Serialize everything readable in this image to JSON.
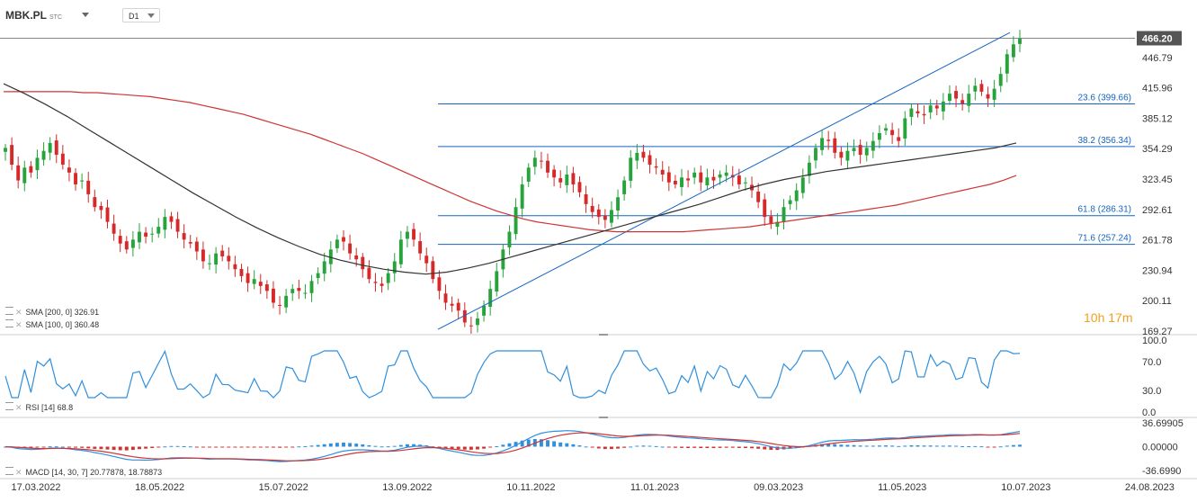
{
  "header": {
    "symbol": "MBK.PL",
    "symbol_suffix": "STC",
    "timeframe": "D1"
  },
  "indicators": {
    "sma200_label": "SMA [200, 0] 326.91",
    "sma100_label": "SMA [100, 0] 360.48",
    "rsi_label": "RSI [14] 68.8",
    "macd_label": "MACD [14, 30, 7] 20.77878, 18.78873"
  },
  "timer": {
    "hours": "10",
    "h_unit": "h",
    "minutes": "17",
    "m_unit": "m"
  },
  "colors": {
    "up": "#26a33a",
    "down": "#d62a2a",
    "sma200": "#d03333",
    "sma100": "#333333",
    "fib": "#1565c0",
    "rsi": "#2f8fdd",
    "macd_line": "#2f8fdd",
    "signal_line": "#d03333",
    "price_tag": "#555555"
  },
  "chart_data": {
    "type": "candlestick",
    "last_price": "466.20",
    "price_ticks": [
      "446.79",
      "415.96",
      "385.12",
      "354.29",
      "323.45",
      "292.61",
      "261.78",
      "230.94",
      "200.11",
      "169.27"
    ],
    "date_ticks": [
      "17.03.2022",
      "18.05.2022",
      "15.07.2022",
      "13.09.2022",
      "10.11.2022",
      "11.01.2023",
      "09.03.2023",
      "11.05.2023",
      "10.07.2023",
      "24.08.2023"
    ],
    "close": [
      355,
      338,
      322,
      335,
      330,
      345,
      352,
      360,
      348,
      338,
      330,
      318,
      322,
      308,
      295,
      292,
      280,
      268,
      258,
      252,
      262,
      270,
      265,
      268,
      275,
      285,
      280,
      270,
      262,
      258,
      250,
      240,
      238,
      248,
      245,
      240,
      232,
      225,
      218,
      222,
      215,
      210,
      198,
      195,
      205,
      212,
      210,
      208,
      220,
      228,
      240,
      252,
      262,
      260,
      248,
      242,
      232,
      222,
      218,
      215,
      228,
      240,
      262,
      270,
      262,
      248,
      238,
      222,
      210,
      198,
      195,
      190,
      178,
      175,
      182,
      195,
      212,
      230,
      252,
      270,
      295,
      318,
      335,
      345,
      342,
      330,
      325,
      320,
      328,
      318,
      310,
      298,
      290,
      285,
      282,
      292,
      305,
      322,
      345,
      350,
      345,
      338,
      335,
      328,
      320,
      318,
      325,
      322,
      330,
      320,
      325,
      322,
      328,
      330,
      325,
      318,
      320,
      312,
      300,
      285,
      278,
      280,
      295,
      302,
      312,
      325,
      340,
      355,
      365,
      362,
      350,
      345,
      352,
      355,
      348,
      355,
      362,
      370,
      375,
      368,
      362,
      385,
      395,
      390,
      388,
      398,
      395,
      402,
      410,
      405,
      400,
      410,
      418,
      412,
      405,
      415,
      430,
      450,
      460,
      466
    ],
    "ma200": [
      412,
      412,
      412,
      412,
      412,
      412,
      411,
      411,
      410,
      409,
      408,
      407,
      405,
      403,
      401,
      398,
      395,
      392,
      389,
      385,
      381,
      377,
      373,
      369,
      364,
      359,
      354,
      349,
      343,
      337,
      331,
      325,
      319,
      313,
      307,
      301,
      296,
      291,
      287,
      283,
      280,
      278,
      276,
      274,
      272,
      271,
      270,
      270,
      270,
      270,
      270,
      270,
      271,
      272,
      273,
      274,
      275,
      277,
      279,
      281,
      283,
      285,
      287,
      289,
      291,
      293,
      295,
      297,
      300,
      303,
      306,
      309,
      312,
      315,
      318,
      322,
      327
    ],
    "ma100": [
      420,
      410,
      399,
      387,
      374,
      361,
      348,
      335,
      322,
      309,
      297,
      285,
      274,
      264,
      255,
      247,
      241,
      236,
      232,
      229,
      227,
      229,
      233,
      238,
      244,
      250,
      256,
      262,
      268,
      274,
      280,
      286,
      292,
      298,
      305,
      312,
      318,
      323,
      327,
      331,
      334,
      337,
      340,
      343,
      346,
      349,
      352,
      355,
      360
    ],
    "sma200_last": 326.91,
    "sma100_last": 360.48,
    "fibonacci": [
      {
        "label": "23.6 (399.66)",
        "value": 399.66
      },
      {
        "label": "38.2 (356.34)",
        "value": 356.34
      },
      {
        "label": "61.8 (286.31)",
        "value": 286.31
      },
      {
        "label": "71.6 (257.24)",
        "value": 257.24
      }
    ],
    "rsi_ticks": [
      "100.0",
      "70.0",
      "30.0",
      "0.0"
    ],
    "rsi_last": 68.8,
    "macd_ticks": [
      "36.69905",
      "0.00000",
      "-36.6990"
    ],
    "macd_last": 20.77878,
    "signal_last": 18.78873
  }
}
